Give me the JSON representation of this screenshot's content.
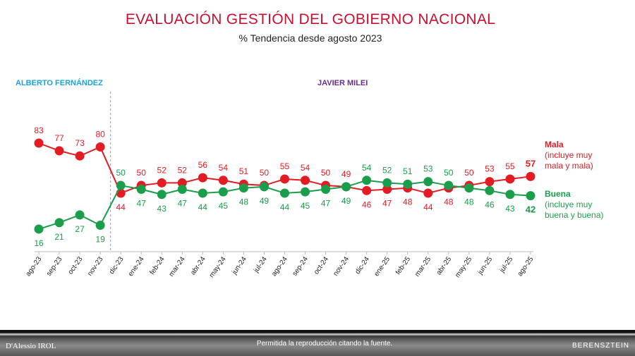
{
  "header": {
    "title": "EVALUACIÓN GESTIÓN DEL GOBIERNO NACIONAL",
    "subtitle": "% Tendencia desde agosto 2023"
  },
  "eras": {
    "first": "ALBERTO FERNÁNDEZ",
    "second": "JAVIER MILEI"
  },
  "legend": {
    "mala_name": "Mala",
    "mala_desc": "(incluye muy mala y mala)",
    "buena_name": "Buena",
    "buena_desc": "(incluye muy buena y buena)"
  },
  "footer": {
    "text": "Permitida la reproducción citando la fuente.",
    "logo_left": "D'Alessio IROL",
    "logo_right": "BERENSZTEIN"
  },
  "chart_data": {
    "type": "line",
    "title": "EVALUACIÓN GESTIÓN DEL GOBIERNO NACIONAL",
    "subtitle": "% Tendencia desde agosto 2023",
    "categories": [
      "ago-23",
      "sep-23",
      "oct-23",
      "nov-23",
      "dic-23",
      "ene-24",
      "feb-24",
      "mar-24",
      "abr-24",
      "may-24",
      "jun-24",
      "jul-24",
      "ago-24",
      "sep-24",
      "oct-24",
      "nov-24",
      "dic-24",
      "ene-25",
      "feb-25",
      "mar-25",
      "abr-25",
      "may-25",
      "jun-25",
      "jul-25",
      "ago-25"
    ],
    "series": [
      {
        "name": "Mala",
        "color": "#e31b23",
        "values": [
          83,
          77,
          73,
          80,
          44,
          50,
          52,
          52,
          56,
          54,
          51,
          50,
          55,
          54,
          50,
          49,
          46,
          47,
          48,
          44,
          48,
          50,
          53,
          55,
          57
        ]
      },
      {
        "name": "Buena",
        "color": "#1a9e4b",
        "values": [
          16,
          21,
          27,
          19,
          50,
          47,
          43,
          47,
          44,
          45,
          48,
          49,
          44,
          45,
          47,
          49,
          54,
          52,
          51,
          53,
          50,
          48,
          46,
          43,
          42
        ]
      }
    ],
    "divider_after": "nov-23",
    "grid": false,
    "legend_position": "right"
  }
}
